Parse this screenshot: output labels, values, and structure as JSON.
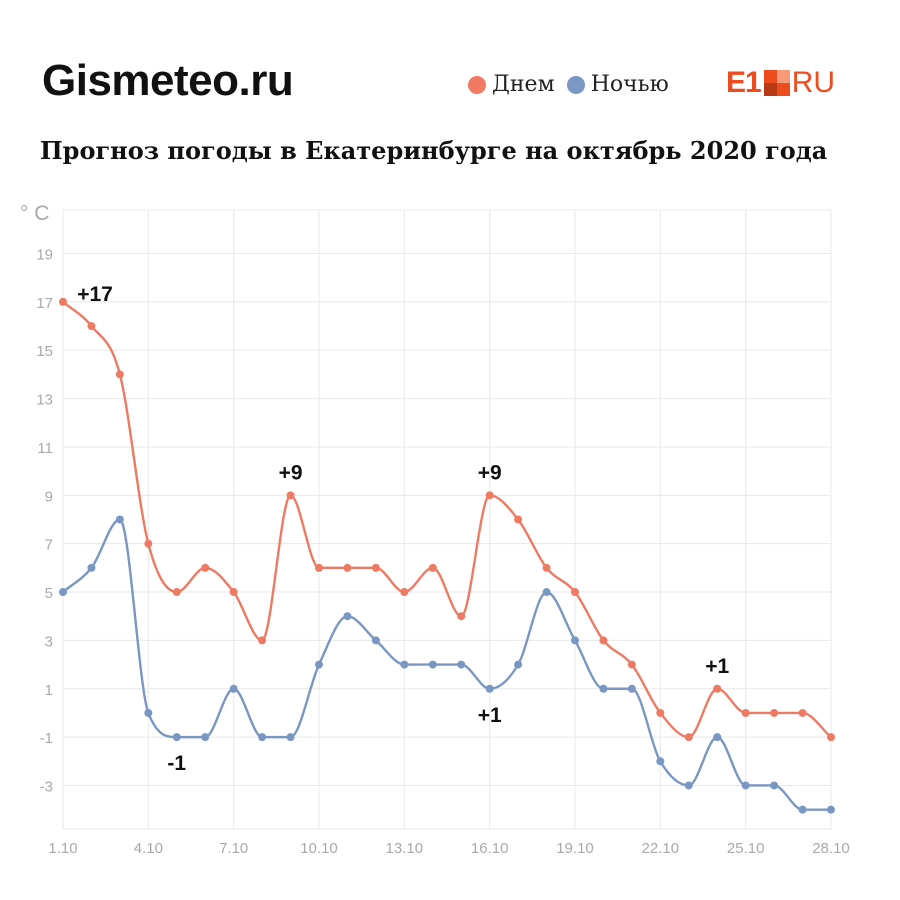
{
  "header": {
    "brand": "Gismeteo.ru",
    "logo_text_left": "E1",
    "logo_text_right": "RU",
    "title": "Прогноз погоды в Екатеринбурге на октябрь 2020 года"
  },
  "legend": [
    {
      "label": "Днем",
      "color": "#f07a62"
    },
    {
      "label": "Ночью",
      "color": "#7b97c3"
    }
  ],
  "colors": {
    "day": "#ee7a63",
    "night": "#7a96c2",
    "logo": "#ee4b1f",
    "grid": "#e8e8e8",
    "axis_text": "#a9a9a9"
  },
  "chart_data": {
    "type": "line",
    "ylabel": "° C",
    "ylim": [
      -4.8,
      20.8
    ],
    "yticks": [
      19,
      17,
      15,
      13,
      11,
      9,
      7,
      5,
      3,
      1,
      -1,
      -3
    ],
    "x": [
      1,
      2,
      3,
      4,
      5,
      6,
      7,
      8,
      9,
      10,
      11,
      12,
      13,
      14,
      15,
      16,
      17,
      18,
      19,
      20,
      21,
      22,
      23,
      24,
      25,
      26,
      27,
      28
    ],
    "xticks": [
      {
        "x": 1,
        "label": "1.10"
      },
      {
        "x": 4,
        "label": "4.10"
      },
      {
        "x": 7,
        "label": "7.10"
      },
      {
        "x": 10,
        "label": "10.10"
      },
      {
        "x": 13,
        "label": "13.10"
      },
      {
        "x": 16,
        "label": "16.10"
      },
      {
        "x": 19,
        "label": "19.10"
      },
      {
        "x": 22,
        "label": "22.10"
      },
      {
        "x": 25,
        "label": "25.10"
      },
      {
        "x": 28,
        "label": "28.10"
      }
    ],
    "series": [
      {
        "name": "Днем",
        "key": "day",
        "values": [
          17,
          16,
          14,
          7,
          5,
          6,
          5,
          3,
          9,
          6,
          6,
          6,
          5,
          6,
          4,
          9,
          8,
          6,
          5,
          3,
          2,
          0,
          -1,
          1,
          0,
          0,
          0,
          -1
        ]
      },
      {
        "name": "Ночью",
        "key": "night",
        "values": [
          5,
          6,
          8,
          0,
          -1,
          -1,
          1,
          -1,
          -1,
          2,
          4,
          3,
          2,
          2,
          2,
          1,
          2,
          5,
          3,
          1,
          1,
          -2,
          -3,
          -1,
          -3,
          -3,
          -4,
          -4
        ]
      }
    ],
    "annotations": [
      {
        "x": 1,
        "y": 17,
        "text": "+17",
        "pos": "above-right"
      },
      {
        "x": 9,
        "y": 9,
        "text": "+9",
        "pos": "above"
      },
      {
        "x": 16,
        "y": 9,
        "text": "+9",
        "pos": "above"
      },
      {
        "x": 24,
        "y": 1,
        "text": "+1",
        "pos": "above"
      },
      {
        "x": 5,
        "y": -1,
        "text": "-1",
        "pos": "below"
      },
      {
        "x": 16,
        "y": 1,
        "text": "+1",
        "pos": "below"
      }
    ]
  }
}
